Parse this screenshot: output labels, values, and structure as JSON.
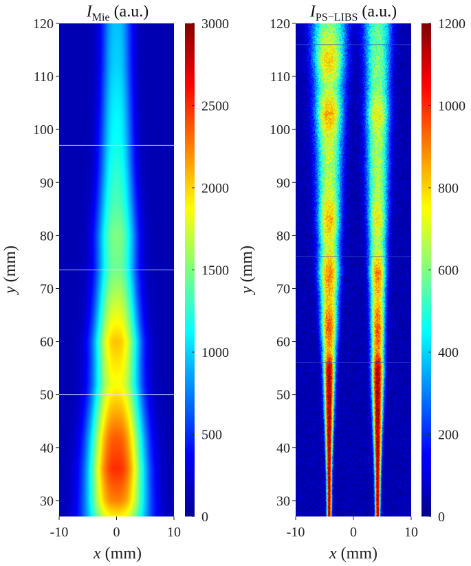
{
  "chart_data": [
    {
      "type": "heatmap",
      "title": "I",
      "title_sub": "Mie",
      "title_unit": "(a.u.)",
      "xlabel_var": "x",
      "xlabel_unit": "(mm)",
      "ylabel_var": "y",
      "ylabel_unit": "(mm)",
      "xlim": [
        -10,
        10
      ],
      "ylim": [
        27,
        120
      ],
      "x_ticks": [
        -10,
        0,
        10
      ],
      "y_ticks": [
        30,
        40,
        50,
        60,
        70,
        80,
        90,
        100,
        110,
        120
      ],
      "colorbar": {
        "range": [
          0,
          3000
        ],
        "ticks": [
          0,
          500,
          1000,
          1500,
          2000,
          2500,
          3000
        ],
        "colormap": "jet"
      },
      "structure": "single central jet",
      "jets": [
        {
          "center_x": 0,
          "profile": [
            {
              "y": 27,
              "half_width": 4.6,
              "intensity": 1900
            },
            {
              "y": 30,
              "half_width": 4.4,
              "intensity": 2250
            },
            {
              "y": 36,
              "half_width": 4.2,
              "intensity": 2500
            },
            {
              "y": 42,
              "half_width": 4.0,
              "intensity": 2350
            },
            {
              "y": 48,
              "half_width": 3.7,
              "intensity": 2050
            },
            {
              "y": 52,
              "half_width": 3.5,
              "intensity": 1850
            },
            {
              "y": 56,
              "half_width": 3.4,
              "intensity": 1950
            },
            {
              "y": 60,
              "half_width": 3.4,
              "intensity": 2050
            },
            {
              "y": 64,
              "half_width": 3.2,
              "intensity": 1850
            },
            {
              "y": 70,
              "half_width": 3.0,
              "intensity": 1600
            },
            {
              "y": 74,
              "half_width": 2.9,
              "intensity": 1450
            },
            {
              "y": 80,
              "half_width": 2.9,
              "intensity": 1500
            },
            {
              "y": 86,
              "half_width": 2.7,
              "intensity": 1350
            },
            {
              "y": 92,
              "half_width": 2.5,
              "intensity": 1250
            },
            {
              "y": 98,
              "half_width": 2.4,
              "intensity": 1150
            },
            {
              "y": 104,
              "half_width": 2.3,
              "intensity": 1100
            },
            {
              "y": 112,
              "half_width": 2.2,
              "intensity": 1000
            },
            {
              "y": 120,
              "half_width": 2.2,
              "intensity": 950
            }
          ]
        }
      ],
      "background_intensity": 150,
      "seam_lines_y": [
        50,
        73.5,
        97
      ]
    },
    {
      "type": "heatmap",
      "title": "I",
      "title_sub": "PS−LIBS",
      "title_unit": "(a.u.)",
      "xlabel_var": "x",
      "xlabel_unit": "(mm)",
      "ylabel_var": "y",
      "ylabel_unit": "(mm)",
      "xlim": [
        -10,
        10
      ],
      "ylim": [
        27,
        120
      ],
      "x_ticks": [
        -10,
        0,
        10
      ],
      "y_ticks": [
        30,
        40,
        50,
        60,
        70,
        80,
        90,
        100,
        110,
        120
      ],
      "colorbar": {
        "range": [
          0,
          1200
        ],
        "ticks": [
          0,
          200,
          400,
          600,
          800,
          1000,
          1200
        ],
        "colormap": "jet"
      },
      "structure": "two parallel jets with noise",
      "jets": [
        {
          "center_x": -4.2,
          "profile": [
            {
              "y": 27,
              "half_width": 0.35,
              "intensity": 1150
            },
            {
              "y": 35,
              "half_width": 0.4,
              "intensity": 1150
            },
            {
              "y": 42,
              "half_width": 0.55,
              "intensity": 1150
            },
            {
              "y": 48,
              "half_width": 0.7,
              "intensity": 1150
            },
            {
              "y": 55,
              "half_width": 0.85,
              "intensity": 1150
            },
            {
              "y": 58,
              "half_width": 1.0,
              "intensity": 850
            },
            {
              "y": 63,
              "half_width": 1.2,
              "intensity": 950
            },
            {
              "y": 68,
              "half_width": 1.3,
              "intensity": 800
            },
            {
              "y": 73,
              "half_width": 1.5,
              "intensity": 900
            },
            {
              "y": 78,
              "half_width": 1.5,
              "intensity": 700
            },
            {
              "y": 83,
              "half_width": 1.6,
              "intensity": 850
            },
            {
              "y": 88,
              "half_width": 1.7,
              "intensity": 700
            },
            {
              "y": 93,
              "half_width": 1.8,
              "intensity": 650
            },
            {
              "y": 98,
              "half_width": 1.9,
              "intensity": 700
            },
            {
              "y": 103,
              "half_width": 2.0,
              "intensity": 850
            },
            {
              "y": 108,
              "half_width": 2.1,
              "intensity": 650
            },
            {
              "y": 113,
              "half_width": 2.3,
              "intensity": 800
            },
            {
              "y": 120,
              "half_width": 2.5,
              "intensity": 600
            }
          ]
        },
        {
          "center_x": 4.2,
          "profile": [
            {
              "y": 27,
              "half_width": 0.35,
              "intensity": 1150
            },
            {
              "y": 35,
              "half_width": 0.45,
              "intensity": 1150
            },
            {
              "y": 42,
              "half_width": 0.6,
              "intensity": 1150
            },
            {
              "y": 48,
              "half_width": 0.75,
              "intensity": 1150
            },
            {
              "y": 55,
              "half_width": 0.9,
              "intensity": 1150
            },
            {
              "y": 58,
              "half_width": 0.95,
              "intensity": 900
            },
            {
              "y": 63,
              "half_width": 1.0,
              "intensity": 950
            },
            {
              "y": 68,
              "half_width": 1.1,
              "intensity": 800
            },
            {
              "y": 73,
              "half_width": 1.2,
              "intensity": 900
            },
            {
              "y": 78,
              "half_width": 1.3,
              "intensity": 650
            },
            {
              "y": 83,
              "half_width": 1.4,
              "intensity": 750
            },
            {
              "y": 88,
              "half_width": 1.5,
              "intensity": 650
            },
            {
              "y": 93,
              "half_width": 1.6,
              "intensity": 650
            },
            {
              "y": 98,
              "half_width": 1.6,
              "intensity": 650
            },
            {
              "y": 103,
              "half_width": 1.7,
              "intensity": 750
            },
            {
              "y": 108,
              "half_width": 1.7,
              "intensity": 600
            },
            {
              "y": 113,
              "half_width": 1.8,
              "intensity": 600
            },
            {
              "y": 120,
              "half_width": 2.0,
              "intensity": 550
            }
          ]
        }
      ],
      "background_intensity": 60,
      "noise_level": 120,
      "seam_lines_y": [
        56,
        76,
        116
      ]
    }
  ]
}
